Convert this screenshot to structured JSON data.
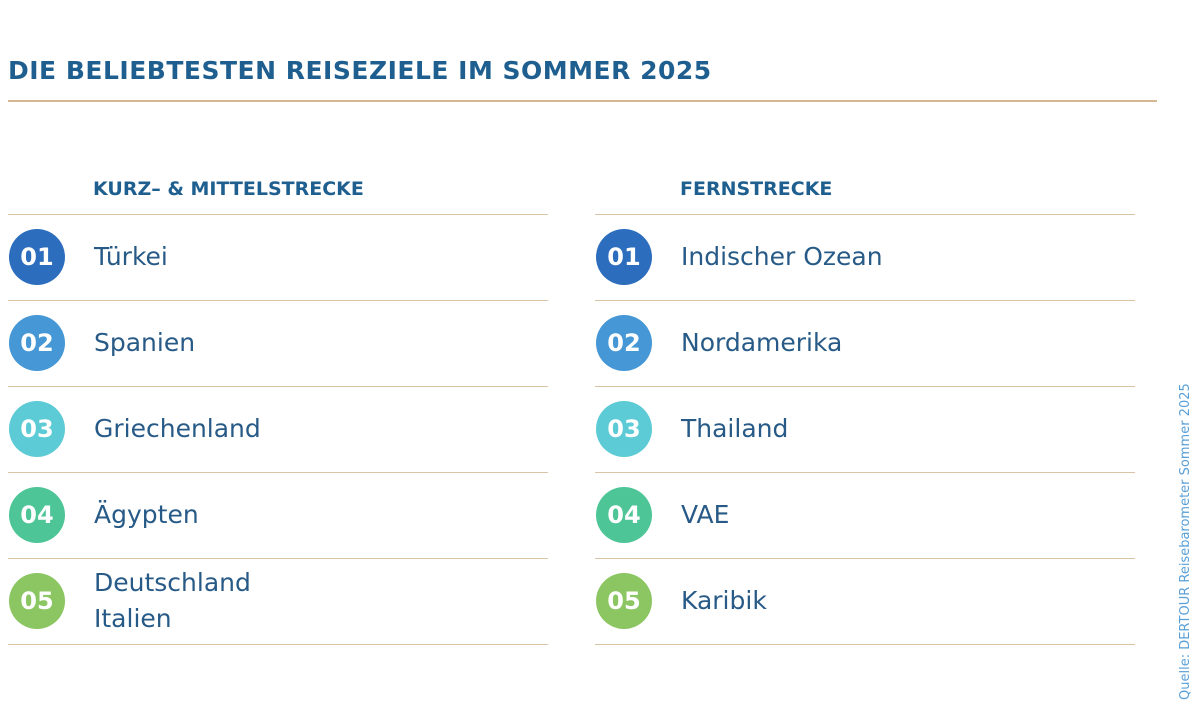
{
  "title": "DIE BELIEBTESTEN REISEZIELE IM SOMMER 2025",
  "lists": [
    {
      "heading": "KURZ– & MITTELSTRECKE",
      "items": [
        {
          "rank": "01",
          "names": [
            "Türkei"
          ]
        },
        {
          "rank": "02",
          "names": [
            "Spanien"
          ]
        },
        {
          "rank": "03",
          "names": [
            "Griechenland"
          ]
        },
        {
          "rank": "04",
          "names": [
            "Ägypten"
          ]
        },
        {
          "rank": "05",
          "names": [
            "Deutschland",
            "Italien"
          ]
        }
      ]
    },
    {
      "heading": "FERNSTRECKE",
      "items": [
        {
          "rank": "01",
          "names": [
            "Indischer Ozean"
          ]
        },
        {
          "rank": "02",
          "names": [
            "Nordamerika"
          ]
        },
        {
          "rank": "03",
          "names": [
            "Thailand"
          ]
        },
        {
          "rank": "04",
          "names": [
            "VAE"
          ]
        },
        {
          "rank": "05",
          "names": [
            "Karibik"
          ]
        }
      ]
    }
  ],
  "source": "Quelle: DERTOUR Reisebarometer Sommer 2025"
}
